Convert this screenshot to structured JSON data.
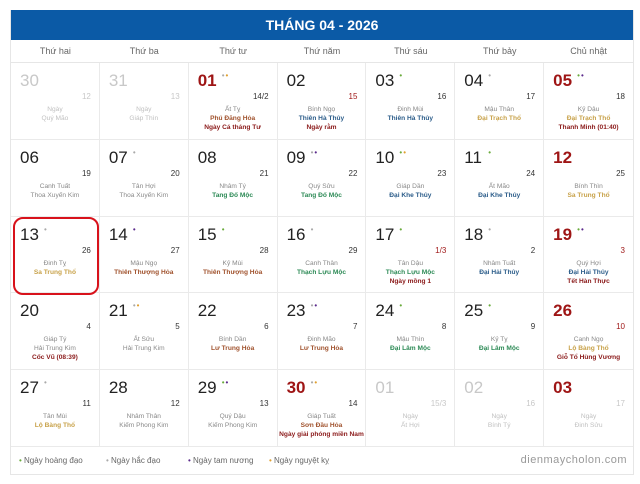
{
  "title": "THÁNG 04 - 2026",
  "weekdays": [
    "Thứ hai",
    "Thứ ba",
    "Thứ tư",
    "Thứ năm",
    "Thứ sáu",
    "Thứ bảy",
    "Chủ nhật"
  ],
  "colors": {
    "header": "#0b5aa6",
    "hoang_dao": "#6aab3c",
    "hac_dao": "#aaaaaa",
    "tam_nuong": "#5b2a8c",
    "nguyet_ky": "#e0a030",
    "Kim": "#8a8a8a",
    "Moc": "#2e8b57",
    "Thuy": "#2c5d8a",
    "Hoa": "#a0522d",
    "Tho": "#c8a24a",
    "event": "#8b1a1a",
    "highlight": "#d8121b"
  },
  "cells": [
    {
      "day": "30",
      "dots": [],
      "lunar": "12",
      "canchi": "Ngày",
      "element": "Quý Mão",
      "etype": "",
      "event": "",
      "muted": true
    },
    {
      "day": "31",
      "dots": [],
      "lunar": "13",
      "canchi": "Ngày",
      "element": "Giáp Thìn",
      "etype": "",
      "event": "",
      "muted": true
    },
    {
      "day": "01",
      "dots": [
        "hac_dao",
        "nguyet_ky"
      ],
      "lunar": "14/2",
      "canchi": "Ất Tỵ",
      "element": "Phú Đăng Hỏa",
      "etype": "Hoa",
      "event": "Ngày Cá tháng Tư",
      "red": true
    },
    {
      "day": "02",
      "dots": [],
      "lunar": "15",
      "lunarRed": true,
      "canchi": "Bính Ngọ",
      "element": "Thiên Hà Thủy",
      "etype": "Thuy",
      "event": "Ngày rằm"
    },
    {
      "day": "03",
      "dots": [
        "hoang_dao"
      ],
      "lunar": "16",
      "canchi": "Đinh Mùi",
      "element": "Thiên Hà Thủy",
      "etype": "Thuy",
      "event": ""
    },
    {
      "day": "04",
      "dots": [
        "hac_dao"
      ],
      "lunar": "17",
      "canchi": "Mậu Thân",
      "element": "Đại Trạch Thổ",
      "etype": "Tho",
      "event": ""
    },
    {
      "day": "05",
      "dots": [
        "hoang_dao",
        "tam_nuong"
      ],
      "lunar": "18",
      "canchi": "Kỷ Dậu",
      "element": "Đại Trạch Thổ",
      "etype": "Tho",
      "event": "Thanh Minh (01:40)",
      "red": true
    },
    {
      "day": "06",
      "dots": [],
      "lunar": "19",
      "canchi": "Canh Tuất",
      "element": "Thoa Xuyến Kim",
      "etype": "Kim",
      "event": ""
    },
    {
      "day": "07",
      "dots": [
        "hac_dao"
      ],
      "lunar": "20",
      "canchi": "Tân Hợi",
      "element": "Thoa Xuyến Kim",
      "etype": "Kim",
      "event": ""
    },
    {
      "day": "08",
      "dots": [],
      "lunar": "21",
      "canchi": "Nhâm Tý",
      "element": "Tang Đố Mộc",
      "etype": "Moc",
      "event": ""
    },
    {
      "day": "09",
      "dots": [
        "hac_dao",
        "tam_nuong"
      ],
      "lunar": "22",
      "canchi": "Quý Sửu",
      "element": "Tang Đố Mộc",
      "etype": "Moc",
      "event": ""
    },
    {
      "day": "10",
      "dots": [
        "hoang_dao",
        "nguyet_ky"
      ],
      "lunar": "23",
      "canchi": "Giáp Dần",
      "element": "Đại Khe Thủy",
      "etype": "Thuy",
      "event": ""
    },
    {
      "day": "11",
      "dots": [
        "hoang_dao"
      ],
      "lunar": "24",
      "canchi": "Ất Mão",
      "element": "Đại Khe Thủy",
      "etype": "Thuy",
      "event": ""
    },
    {
      "day": "12",
      "dots": [],
      "lunar": "25",
      "canchi": "Bính Thìn",
      "element": "Sa Trung Thổ",
      "etype": "Tho",
      "event": "",
      "red": true
    },
    {
      "day": "13",
      "dots": [
        "hac_dao"
      ],
      "lunar": "26",
      "canchi": "Đinh Tỵ",
      "element": "Sa Trung Thổ",
      "etype": "Tho",
      "event": "",
      "highlight": true
    },
    {
      "day": "14",
      "dots": [
        "tam_nuong"
      ],
      "lunar": "27",
      "canchi": "Mậu Ngọ",
      "element": "Thiên Thượng Hỏa",
      "etype": "Hoa",
      "event": ""
    },
    {
      "day": "15",
      "dots": [
        "hoang_dao"
      ],
      "lunar": "28",
      "canchi": "Kỷ Mùi",
      "element": "Thiên Thượng Hỏa",
      "etype": "Hoa",
      "event": ""
    },
    {
      "day": "16",
      "dots": [
        "hac_dao"
      ],
      "lunar": "29",
      "canchi": "Canh Thân",
      "element": "Thạch Lựu Mộc",
      "etype": "Moc",
      "event": ""
    },
    {
      "day": "17",
      "dots": [
        "hoang_dao"
      ],
      "lunar": "1/3",
      "lunarRed": true,
      "canchi": "Tân Dậu",
      "element": "Thạch Lựu Mộc",
      "etype": "Moc",
      "event": "Ngày mồng 1"
    },
    {
      "day": "18",
      "dots": [
        "hac_dao"
      ],
      "lunar": "2",
      "canchi": "Nhâm Tuất",
      "element": "Đại Hải Thủy",
      "etype": "Thuy",
      "event": ""
    },
    {
      "day": "19",
      "dots": [
        "hoang_dao",
        "tam_nuong"
      ],
      "lunar": "3",
      "lunarRed": true,
      "canchi": "Quý Hợi",
      "element": "Đại Hải Thủy",
      "etype": "Thuy",
      "event": "Tết Hàn Thực",
      "red": true
    },
    {
      "day": "20",
      "dots": [],
      "lunar": "4",
      "canchi": "Giáp Tý",
      "element": "Hải Trung Kim",
      "etype": "Kim",
      "event": "Cốc Vũ (08:39)"
    },
    {
      "day": "21",
      "dots": [
        "hac_dao",
        "nguyet_ky"
      ],
      "lunar": "5",
      "canchi": "Ất Sửu",
      "element": "Hải Trung Kim",
      "etype": "Kim",
      "event": ""
    },
    {
      "day": "22",
      "dots": [],
      "lunar": "6",
      "canchi": "Bính Dần",
      "element": "Lư Trung Hỏa",
      "etype": "Hoa",
      "event": ""
    },
    {
      "day": "23",
      "dots": [
        "hac_dao",
        "tam_nuong"
      ],
      "lunar": "7",
      "canchi": "Đinh Mão",
      "element": "Lư Trung Hỏa",
      "etype": "Hoa",
      "event": ""
    },
    {
      "day": "24",
      "dots": [
        "hoang_dao"
      ],
      "lunar": "8",
      "canchi": "Mậu Thìn",
      "element": "Đại Lâm Mộc",
      "etype": "Moc",
      "event": ""
    },
    {
      "day": "25",
      "dots": [
        "hoang_dao"
      ],
      "lunar": "9",
      "canchi": "Kỷ Tỵ",
      "element": "Đại Lâm Mộc",
      "etype": "Moc",
      "event": ""
    },
    {
      "day": "26",
      "dots": [],
      "lunar": "10",
      "lunarRed": true,
      "canchi": "Canh Ngọ",
      "element": "Lộ Bàng Thổ",
      "etype": "Tho",
      "event": "Giỗ Tổ Hùng Vương",
      "red": true
    },
    {
      "day": "27",
      "dots": [
        "hac_dao"
      ],
      "lunar": "11",
      "canchi": "Tân Mùi",
      "element": "Lộ Bàng Thổ",
      "etype": "Tho",
      "event": ""
    },
    {
      "day": "28",
      "dots": [],
      "lunar": "12",
      "canchi": "Nhâm Thân",
      "element": "Kiếm Phong Kim",
      "etype": "Kim",
      "event": ""
    },
    {
      "day": "29",
      "dots": [
        "hoang_dao",
        "tam_nuong"
      ],
      "lunar": "13",
      "canchi": "Quý Dậu",
      "element": "Kiếm Phong Kim",
      "etype": "Kim",
      "event": ""
    },
    {
      "day": "30",
      "dots": [
        "hac_dao",
        "nguyet_ky"
      ],
      "lunar": "14",
      "canchi": "Giáp Tuất",
      "element": "Sơn Đầu Hỏa",
      "etype": "Hoa",
      "event": "Ngày giải phóng miền Nam",
      "red": true
    },
    {
      "day": "01",
      "dots": [],
      "lunar": "15/3",
      "canchi": "Ngày",
      "element": "Ất Hợi",
      "etype": "",
      "event": "",
      "muted": true
    },
    {
      "day": "02",
      "dots": [],
      "lunar": "16",
      "canchi": "Ngày",
      "element": "Bính Tý",
      "etype": "",
      "event": "",
      "muted": true
    },
    {
      "day": "03",
      "dots": [],
      "lunar": "17",
      "canchi": "Ngày",
      "element": "Đinh Sửu",
      "etype": "",
      "event": "",
      "muted": true,
      "red": true
    }
  ],
  "legend": [
    {
      "key": "hoang_dao",
      "label": "Ngày hoàng đạo"
    },
    {
      "key": "hac_dao",
      "label": "Ngày hắc đạo"
    },
    {
      "key": "tam_nuong",
      "label": "Ngày tam nương"
    },
    {
      "key": "nguyet_ky",
      "label": "Ngày nguyệt kỵ"
    }
  ],
  "brand": "dienmaycholon.com"
}
